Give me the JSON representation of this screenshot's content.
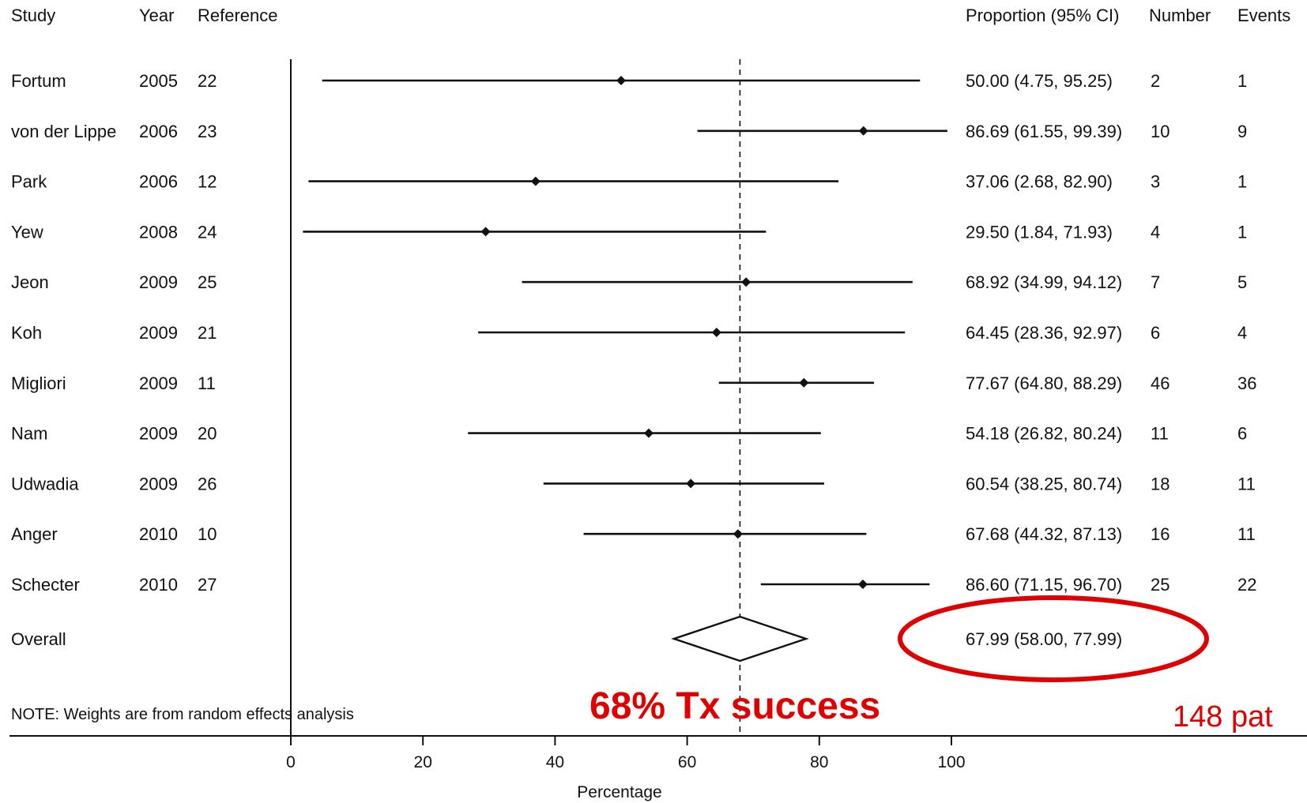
{
  "chart_data": {
    "type": "forest",
    "headers": {
      "study": "Study",
      "year": "Year",
      "reference": "Reference",
      "proportion": "Proportion (95% CI)",
      "number": "Number",
      "events": "Events"
    },
    "studies": [
      {
        "study": "Fortum",
        "year": "2005",
        "reference": "22",
        "estimate": 50.0,
        "lower": 4.75,
        "upper": 95.25,
        "ci_text": "50.00 (4.75, 95.25)",
        "number": "2",
        "events": "1"
      },
      {
        "study": "von der Lippe",
        "year": "2006",
        "reference": "23",
        "estimate": 86.69,
        "lower": 61.55,
        "upper": 99.39,
        "ci_text": "86.69 (61.55, 99.39)",
        "number": "10",
        "events": "9"
      },
      {
        "study": "Park",
        "year": "2006",
        "reference": "12",
        "estimate": 37.06,
        "lower": 2.68,
        "upper": 82.9,
        "ci_text": "37.06 (2.68, 82.90)",
        "number": "3",
        "events": "1"
      },
      {
        "study": "Yew",
        "year": "2008",
        "reference": "24",
        "estimate": 29.5,
        "lower": 1.84,
        "upper": 71.93,
        "ci_text": "29.50 (1.84, 71.93)",
        "number": "4",
        "events": "1"
      },
      {
        "study": "Jeon",
        "year": "2009",
        "reference": "25",
        "estimate": 68.92,
        "lower": 34.99,
        "upper": 94.12,
        "ci_text": "68.92 (34.99, 94.12)",
        "number": "7",
        "events": "5"
      },
      {
        "study": "Koh",
        "year": "2009",
        "reference": "21",
        "estimate": 64.45,
        "lower": 28.36,
        "upper": 92.97,
        "ci_text": "64.45 (28.36, 92.97)",
        "number": "6",
        "events": "4"
      },
      {
        "study": "Migliori",
        "year": "2009",
        "reference": "11",
        "estimate": 77.67,
        "lower": 64.8,
        "upper": 88.29,
        "ci_text": "77.67 (64.80, 88.29)",
        "number": "46",
        "events": "36"
      },
      {
        "study": "Nam",
        "year": "2009",
        "reference": "20",
        "estimate": 54.18,
        "lower": 26.82,
        "upper": 80.24,
        "ci_text": "54.18 (26.82, 80.24)",
        "number": "11",
        "events": "6"
      },
      {
        "study": "Udwadia",
        "year": "2009",
        "reference": "26",
        "estimate": 60.54,
        "lower": 38.25,
        "upper": 80.74,
        "ci_text": "60.54 (38.25, 80.74)",
        "number": "18",
        "events": "11"
      },
      {
        "study": "Anger",
        "year": "2010",
        "reference": "10",
        "estimate": 67.68,
        "lower": 44.32,
        "upper": 87.13,
        "ci_text": "67.68 (44.32, 87.13)",
        "number": "16",
        "events": "11"
      },
      {
        "study": "Schecter",
        "year": "2010",
        "reference": "27",
        "estimate": 86.6,
        "lower": 71.15,
        "upper": 96.7,
        "ci_text": "86.60 (71.15, 96.70)",
        "number": "25",
        "events": "22"
      }
    ],
    "overall": {
      "label": "Overall",
      "estimate": 67.99,
      "lower": 58.0,
      "upper": 77.99,
      "ci_text": "67.99 (58.00, 77.99)"
    },
    "note": "NOTE: Weights are from random effects analysis",
    "xlabel": "Percentage",
    "xlim": [
      0,
      100
    ],
    "xticks": [
      0,
      20,
      40,
      60,
      80,
      100
    ],
    "reference_line": 67.99,
    "annotations": [
      {
        "text": "68% Tx success",
        "color": "#e00000"
      },
      {
        "text": "148 pat",
        "color": "#e00000"
      }
    ],
    "highlight": {
      "target": "overall",
      "shape": "ellipse",
      "color": "#e00000"
    }
  }
}
